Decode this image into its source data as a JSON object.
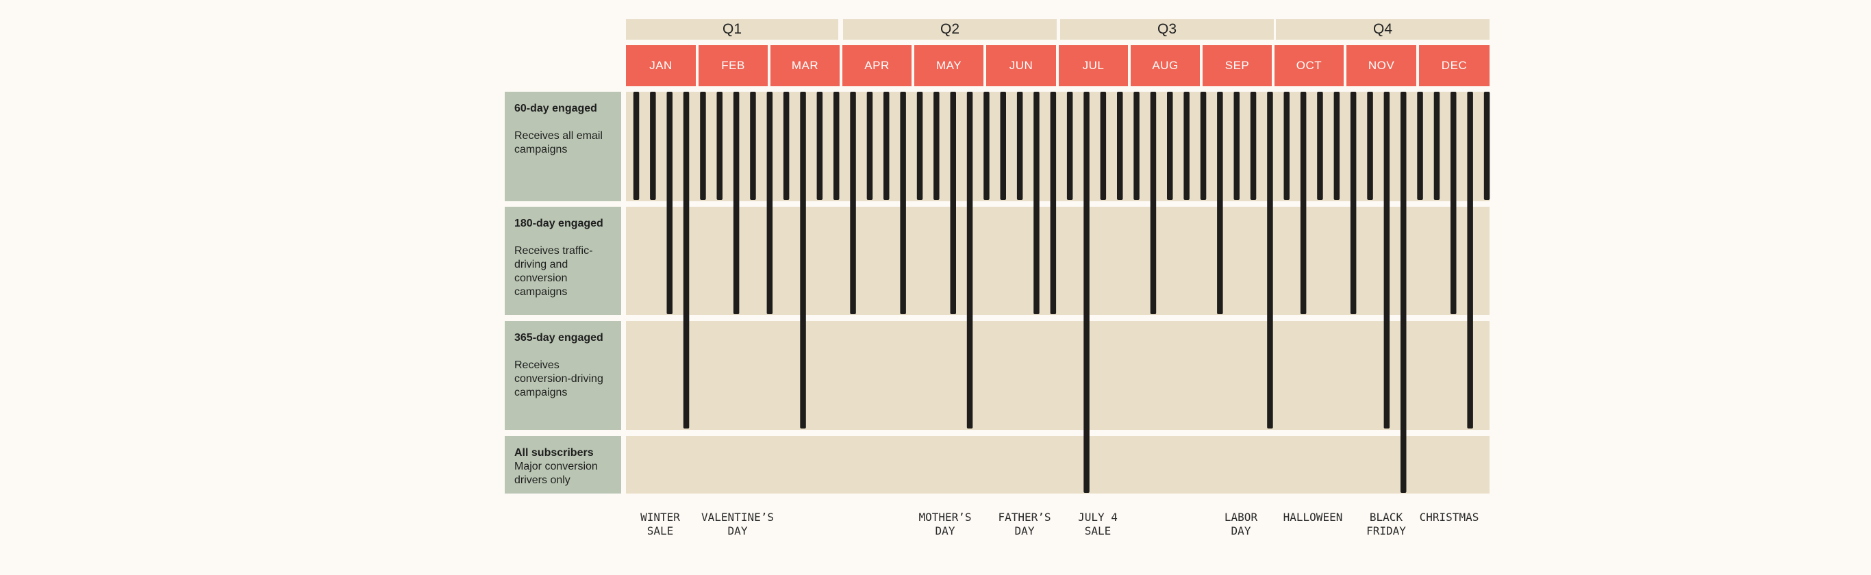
{
  "quarters": [
    {
      "label": "Q1"
    },
    {
      "label": "Q2"
    },
    {
      "label": "Q3"
    },
    {
      "label": "Q4"
    }
  ],
  "months": [
    {
      "label": "JAN"
    },
    {
      "label": "FEB"
    },
    {
      "label": "MAR"
    },
    {
      "label": "APR"
    },
    {
      "label": "MAY"
    },
    {
      "label": "JUN"
    },
    {
      "label": "JUL"
    },
    {
      "label": "AUG"
    },
    {
      "label": "SEP"
    },
    {
      "label": "OCT"
    },
    {
      "label": "NOV"
    },
    {
      "label": "DEC"
    }
  ],
  "segments": [
    {
      "title": "60-day engaged",
      "description": "Receives all email campaigns"
    },
    {
      "title": "180-day engaged",
      "description": "Receives traffic-driving and conversion campaigns"
    },
    {
      "title": "365-day engaged",
      "description": "Receives conversion-driving campaigns"
    },
    {
      "title": "All subscribers",
      "description": "Major conversion drivers only"
    }
  ],
  "holidays": [
    {
      "label": "WINTER\nSALE"
    },
    {
      "label": "VALENTINE’S\nDAY"
    },
    {
      "label": "MOTHER’S\nDAY"
    },
    {
      "label": "FATHER’S\nDAY"
    },
    {
      "label": "JULY 4\nSALE"
    },
    {
      "label": "LABOR\nDAY"
    },
    {
      "label": "HALLOWEEN"
    },
    {
      "label": "BLACK\nFRIDAY"
    },
    {
      "label": "CHRISTMAS"
    }
  ],
  "campaigns": {
    "segment_count": 4,
    "depths": [
      1,
      1,
      2,
      3,
      1,
      1,
      2,
      1,
      2,
      1,
      3,
      1,
      1,
      2,
      1,
      1,
      2,
      1,
      1,
      2,
      3,
      1,
      1,
      1,
      2,
      2,
      1,
      4,
      1,
      1,
      1,
      2,
      1,
      1,
      1,
      2,
      1,
      1,
      3,
      1,
      2,
      1,
      1,
      2,
      1,
      3,
      4,
      1,
      1,
      2,
      3,
      1
    ]
  },
  "colors": {
    "month": "#ef6454",
    "quarter": "#e9dfc9",
    "band": "#e9dfc9",
    "segment": "#bac6b3",
    "bar": "#1e1d1c"
  }
}
